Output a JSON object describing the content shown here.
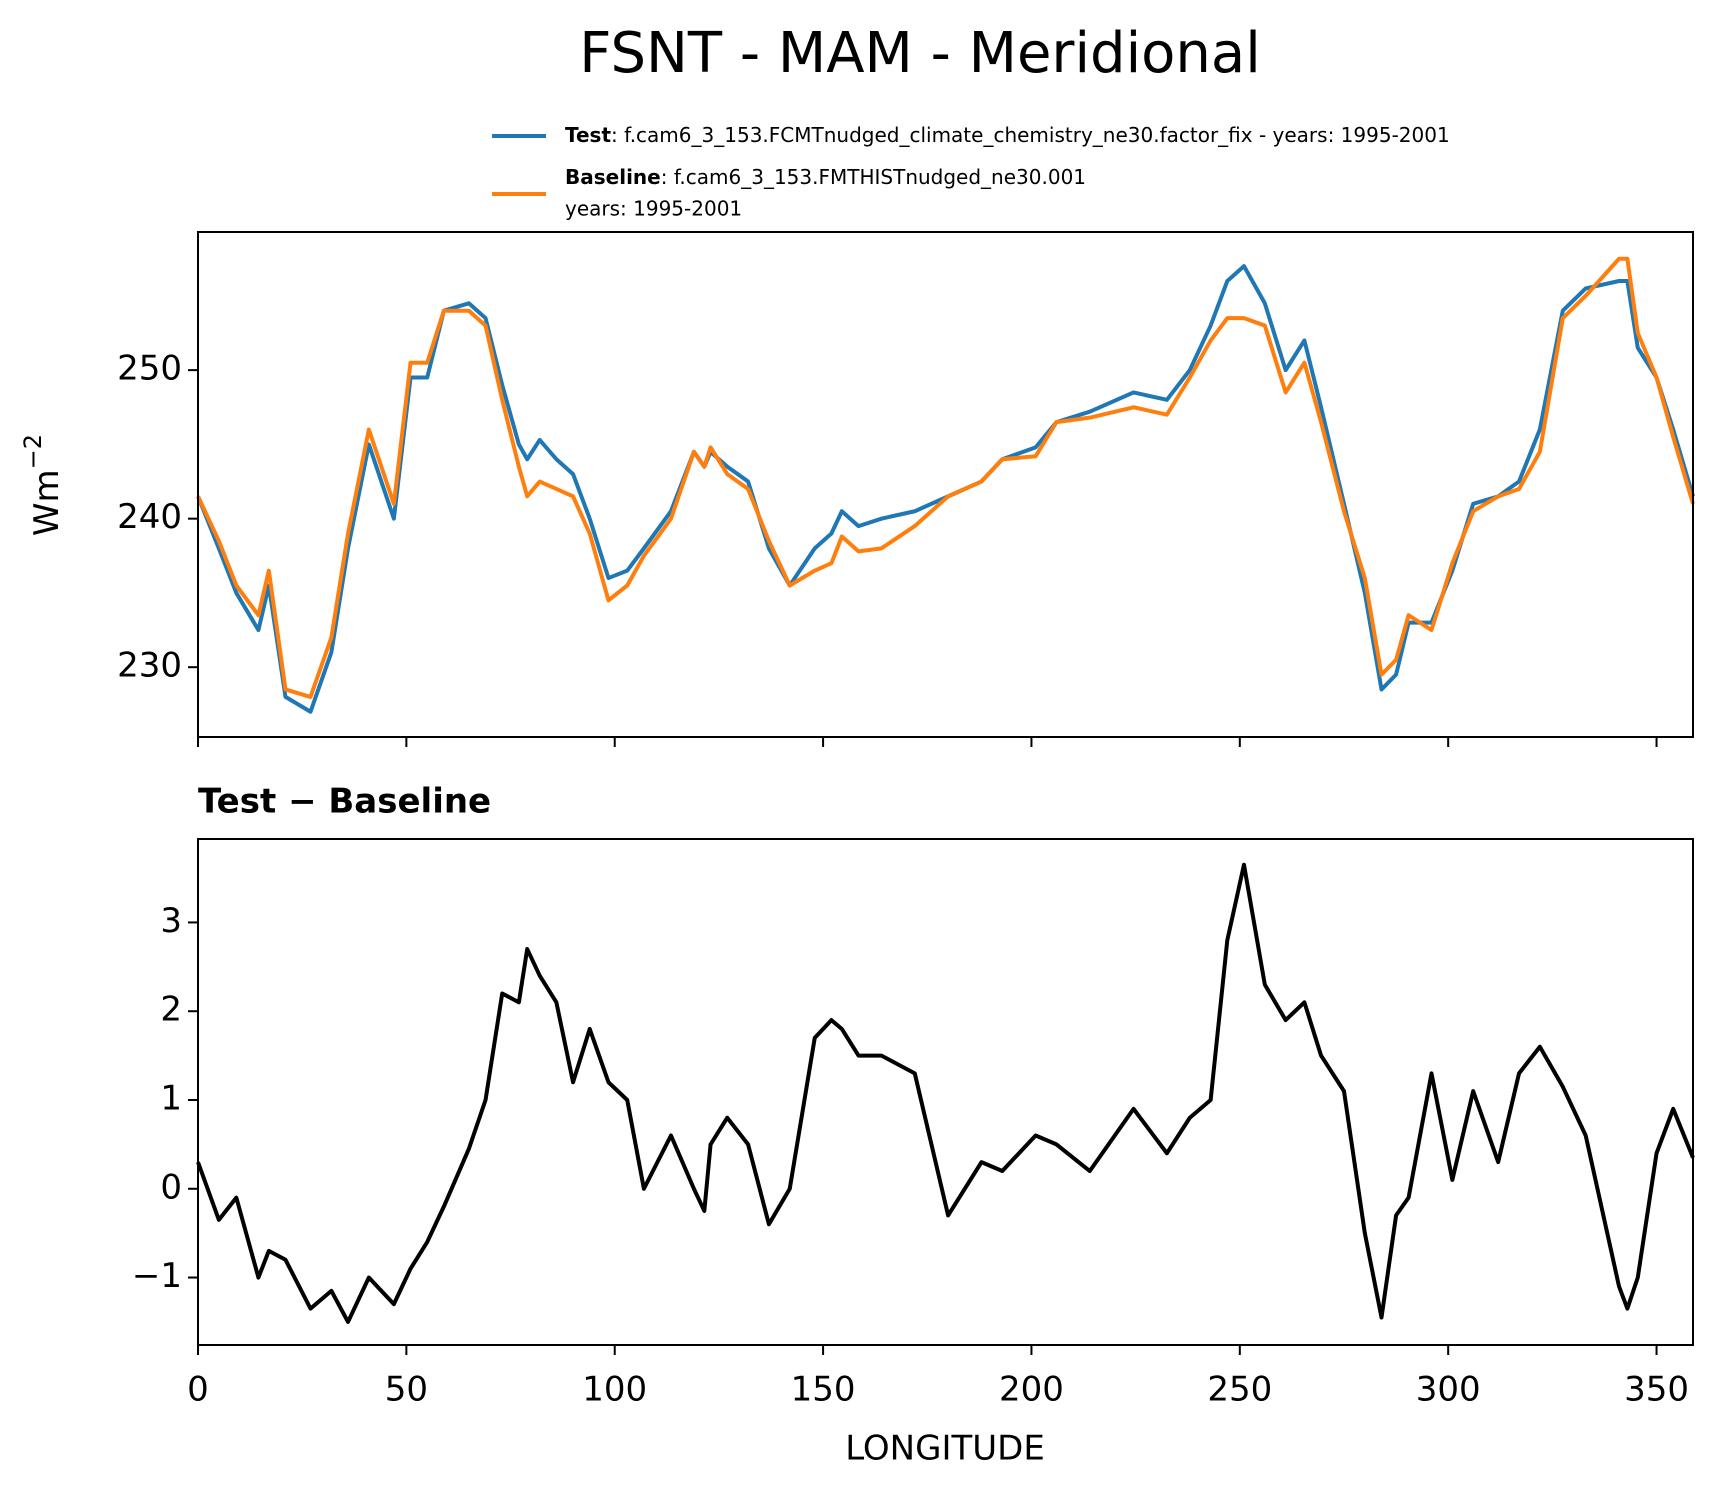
{
  "title": "FSNT - MAM - Meridional",
  "chart_data": [
    {
      "type": "line",
      "ylabel": "Wm",
      "ylabel_exponent": "−2",
      "x": [
        0,
        5,
        9.2,
        14.5,
        17,
        21,
        27,
        32,
        36,
        41,
        47,
        51,
        55,
        59,
        65,
        69,
        73,
        77,
        79,
        82,
        86,
        90,
        94,
        98.5,
        103,
        107,
        113.5,
        119,
        121.5,
        123,
        127,
        132,
        137,
        142,
        148,
        152,
        154.5,
        158.5,
        164,
        172,
        180,
        188,
        193,
        201,
        206,
        214,
        224.5,
        232.5,
        238,
        243,
        247,
        251,
        256,
        261,
        265.5,
        269.5,
        275,
        280,
        284,
        287.5,
        290.5,
        296,
        301,
        306,
        312,
        317,
        322,
        327.5,
        333,
        341,
        343,
        345.5,
        350,
        354,
        358.75
      ],
      "series": [
        {
          "name": "Test",
          "label": ": f.cam6_3_153.FCMTnudged_climate_chemistry_ne30.factor_fix - years: 1995-2001",
          "color": "#1f77b4",
          "values": [
            241.5,
            238,
            235,
            232.5,
            235.5,
            228,
            227,
            231,
            238,
            245,
            240,
            249.5,
            249.5,
            254,
            254.5,
            253.5,
            249,
            245,
            244,
            245.3,
            244,
            243,
            240,
            236,
            236.5,
            238,
            240.5,
            244.5,
            243.5,
            244.5,
            243.5,
            242.5,
            238,
            235.5,
            238,
            239,
            240.5,
            239.5,
            240,
            240.5,
            241.5,
            242.5,
            244,
            244.8,
            246.5,
            247.2,
            248.5,
            248,
            250,
            253,
            256,
            257,
            254.5,
            250,
            252,
            247.5,
            241,
            235,
            228.5,
            229.5,
            233,
            233,
            236.5,
            241,
            241.5,
            242.5,
            246,
            254,
            255.5,
            256,
            256,
            251.5,
            249.5,
            246,
            241.5
          ]
        },
        {
          "name": "Baseline",
          "label_lines": [
            ": f.cam6_3_153.FMTHISTnudged_ne30.001",
            "years: 1995-2001"
          ],
          "color": "#ff7f0e",
          "values": [
            241.5,
            238.5,
            235.5,
            233.5,
            236.5,
            228.5,
            228,
            232,
            239,
            246,
            241,
            250.5,
            250.5,
            254,
            254,
            253,
            248,
            243.5,
            241.5,
            242.5,
            242,
            241.5,
            239,
            234.5,
            235.5,
            237.5,
            240,
            244.5,
            243.5,
            244.8,
            243,
            242,
            238.5,
            235.5,
            236.5,
            237,
            238.8,
            237.8,
            238,
            239.5,
            241.5,
            242.5,
            244,
            244.2,
            246.5,
            246.8,
            247.5,
            247,
            249.5,
            252,
            253.5,
            253.5,
            253,
            248.5,
            250.5,
            246.5,
            240.5,
            236,
            229.5,
            230.5,
            233.5,
            232.5,
            237,
            240.5,
            241.5,
            242,
            244.5,
            253.5,
            255,
            257.5,
            257.5,
            252.5,
            249.5,
            245.5,
            241
          ]
        }
      ],
      "xlim": [
        0,
        358.75
      ],
      "xticks": [
        0,
        50,
        100,
        150,
        200,
        250,
        300,
        350
      ],
      "ylim": [
        225.3,
        259.3
      ],
      "yticks": [
        230,
        240,
        250
      ]
    },
    {
      "type": "line",
      "title": "Test − Baseline",
      "xlabel": "LONGITUDE",
      "x": [
        0,
        5,
        9.2,
        14.5,
        17,
        21,
        27,
        32,
        36,
        41,
        47,
        51,
        55,
        59,
        65,
        69,
        73,
        77,
        79,
        82,
        86,
        90,
        94,
        98.5,
        103,
        107,
        113.5,
        119,
        121.5,
        123,
        127,
        132,
        137,
        142,
        148,
        152,
        154.5,
        158.5,
        164,
        172,
        180,
        188,
        193,
        201,
        206,
        214,
        224.5,
        232.5,
        238,
        243,
        247,
        251,
        256,
        261,
        265.5,
        269.5,
        275,
        280,
        284,
        287.5,
        290.5,
        296,
        301,
        306,
        312,
        317,
        322,
        327.5,
        333,
        341,
        343,
        345.5,
        350,
        354,
        358.75
      ],
      "series": [
        {
          "color": "#000000",
          "values": [
            0.3,
            -0.35,
            -0.1,
            -1.0,
            -0.7,
            -0.8,
            -1.35,
            -1.15,
            -1.5,
            -1.0,
            -1.3,
            -0.9,
            -0.6,
            -0.2,
            0.45,
            1.0,
            2.2,
            2.1,
            2.7,
            2.4,
            2.1,
            1.2,
            1.8,
            1.2,
            1.0,
            0.0,
            0.6,
            0.0,
            -0.25,
            0.5,
            0.8,
            0.5,
            -0.4,
            0.0,
            1.7,
            1.9,
            1.8,
            1.5,
            1.5,
            1.3,
            -0.3,
            0.3,
            0.2,
            0.6,
            0.5,
            0.2,
            0.9,
            0.4,
            0.8,
            1.0,
            2.8,
            3.65,
            2.3,
            1.9,
            2.1,
            1.5,
            1.1,
            -0.5,
            -1.45,
            -0.3,
            -0.1,
            1.3,
            0.1,
            1.1,
            0.3,
            1.3,
            1.6,
            1.15,
            0.6,
            -1.1,
            -1.35,
            -1.0,
            0.4,
            0.9,
            0.35
          ]
        }
      ],
      "xlim": [
        0,
        358.75
      ],
      "xticks": [
        0,
        50,
        100,
        150,
        200,
        250,
        300,
        350
      ],
      "ylim": [
        -1.76,
        3.94
      ],
      "yticks": [
        {
          "value": -1,
          "label": "−1"
        },
        0,
        1,
        2,
        3
      ]
    }
  ]
}
